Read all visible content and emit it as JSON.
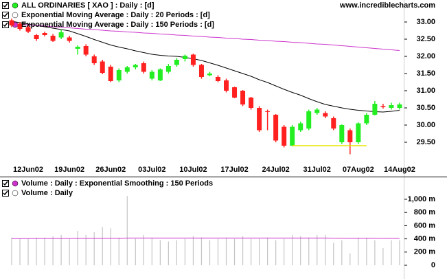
{
  "chart_data": [
    {
      "type": "candlestick",
      "name": "ALL ORDINARIES [ XAO ] : Daily : [d]",
      "source": "www.incrediblecharts.com",
      "categories": [
        null,
        null,
        "12Jun02",
        null,
        null,
        null,
        null,
        "19Jun02",
        null,
        null,
        null,
        null,
        "26Jun02",
        null,
        null,
        null,
        null,
        "03Jul02",
        null,
        null,
        null,
        null,
        "10Jul02",
        null,
        null,
        null,
        null,
        "17Jul02",
        null,
        null,
        null,
        null,
        "24Jul02",
        null,
        null,
        null,
        null,
        "31Jul02",
        null,
        null,
        null,
        null,
        "07Aug02",
        null,
        null,
        null,
        null,
        "14Aug02"
      ],
      "open": [
        33.05,
        32.95,
        32.85,
        32.62,
        32.68,
        32.6,
        32.55,
        32.55,
        32.22,
        32.3,
        32.0,
        31.85,
        31.7,
        31.3,
        31.55,
        31.68,
        31.8,
        31.35,
        31.3,
        31.55,
        31.75,
        31.92,
        32.05,
        31.75,
        31.45,
        31.4,
        31.3,
        31.1,
        31.0,
        30.8,
        30.5,
        30.4,
        30.3,
        29.95,
        29.4,
        29.85,
        29.9,
        30.35,
        30.35,
        30.2,
        29.5,
        29.85,
        29.5,
        30.05,
        30.3,
        30.55,
        30.5,
        30.5
      ],
      "high": [
        33.1,
        33.0,
        32.9,
        32.65,
        32.72,
        32.65,
        32.78,
        32.6,
        32.32,
        32.35,
        32.05,
        31.9,
        31.75,
        31.65,
        31.72,
        31.78,
        31.85,
        31.6,
        31.65,
        31.78,
        31.95,
        32.05,
        32.08,
        31.78,
        31.55,
        31.45,
        31.35,
        31.12,
        31.02,
        30.82,
        30.55,
        30.45,
        30.32,
        30.0,
        30.0,
        30.1,
        30.45,
        30.5,
        30.4,
        30.25,
        30.02,
        29.9,
        30.08,
        30.35,
        30.7,
        30.62,
        30.65,
        30.65
      ],
      "low": [
        32.85,
        32.75,
        32.68,
        32.45,
        32.58,
        32.42,
        32.5,
        32.4,
        32.05,
        32.0,
        31.75,
        31.48,
        31.25,
        31.25,
        31.5,
        31.62,
        31.5,
        31.3,
        31.28,
        31.5,
        31.7,
        31.85,
        31.7,
        31.35,
        31.42,
        31.25,
        30.95,
        30.78,
        30.55,
        30.45,
        29.8,
        29.85,
        29.5,
        29.35,
        29.38,
        29.8,
        29.85,
        30.3,
        30.2,
        29.85,
        29.45,
        29.15,
        29.45,
        30.0,
        30.28,
        30.48,
        30.45,
        30.45
      ],
      "close": [
        32.9,
        32.8,
        32.72,
        32.5,
        32.62,
        32.45,
        32.7,
        32.45,
        32.28,
        32.05,
        31.8,
        31.52,
        31.28,
        31.6,
        31.68,
        31.75,
        31.55,
        31.55,
        31.62,
        31.72,
        31.9,
        32.02,
        31.75,
        31.4,
        31.5,
        31.28,
        31.0,
        30.8,
        30.6,
        30.5,
        29.85,
        30.38,
        29.55,
        29.4,
        29.95,
        30.05,
        30.4,
        30.45,
        30.25,
        29.9,
        30.0,
        29.5,
        30.05,
        30.3,
        30.62,
        30.52,
        30.58,
        30.6
      ],
      "up_color": "#22ee22",
      "down_color": "#ff2020",
      "series": [
        {
          "name": "Exponential Moving Average : Daily : 20 Periods : [d]",
          "color": "#000000",
          "values": [
            33.02,
            32.98,
            32.94,
            32.9,
            32.86,
            32.82,
            32.78,
            32.74,
            32.66,
            32.58,
            32.49,
            32.41,
            32.33,
            32.27,
            32.22,
            32.16,
            32.11,
            32.06,
            32.03,
            32.01,
            32.0,
            31.97,
            31.93,
            31.88,
            31.81,
            31.74,
            31.66,
            31.58,
            31.5,
            31.42,
            31.32,
            31.24,
            31.14,
            31.04,
            30.95,
            30.87,
            30.77,
            30.68,
            30.6,
            30.55,
            30.5,
            30.46,
            30.43,
            30.41,
            30.39,
            30.38,
            30.4,
            30.43
          ]
        },
        {
          "name": "Exponential Moving Average : Daily : 150 Periods : [d]",
          "color": "#cc33cc",
          "values": [
            32.95,
            32.93,
            32.92,
            32.9,
            32.88,
            32.86,
            32.85,
            32.83,
            32.81,
            32.79,
            32.78,
            32.76,
            32.74,
            32.73,
            32.71,
            32.7,
            32.68,
            32.67,
            32.65,
            32.64,
            32.62,
            32.61,
            32.59,
            32.58,
            32.56,
            32.55,
            32.53,
            32.52,
            32.5,
            32.49,
            32.47,
            32.46,
            32.44,
            32.43,
            32.41,
            32.4,
            32.38,
            32.36,
            32.35,
            32.33,
            32.31,
            32.29,
            32.27,
            32.25,
            32.23,
            32.21,
            32.19,
            32.17
          ]
        }
      ],
      "lines": [
        {
          "color": "#e6e600",
          "values": [
            null,
            null,
            null,
            null,
            null,
            null,
            null,
            null,
            null,
            null,
            null,
            null,
            null,
            null,
            null,
            null,
            null,
            null,
            null,
            null,
            null,
            null,
            null,
            null,
            null,
            null,
            null,
            null,
            null,
            null,
            null,
            null,
            null,
            null,
            29.4,
            29.4,
            29.4,
            29.4,
            29.4,
            29.4,
            29.4,
            29.4,
            29.4,
            29.4,
            null,
            null,
            null,
            null
          ]
        }
      ],
      "ylim": [
        28.84,
        33.64
      ],
      "yticks": [
        {
          "value": 33,
          "label": "33.00"
        },
        {
          "value": 32.5,
          "label": "32.50"
        },
        {
          "value": 32,
          "label": "32.00"
        },
        {
          "value": 31.5,
          "label": "31.50"
        },
        {
          "value": 31,
          "label": "31.00"
        },
        {
          "value": 30.5,
          "label": "30.50"
        },
        {
          "value": 30,
          "label": "30.00"
        },
        {
          "value": 29.5,
          "label": "29.50"
        }
      ]
    },
    {
      "type": "bar",
      "series": [
        {
          "name": "Volume : Daily : Exponential Smoothing : 150 Periods",
          "color": "#cc33cc",
          "type": "line",
          "values": [
            405,
            405,
            405,
            406,
            406,
            406,
            407,
            407,
            407,
            408,
            408,
            409,
            410,
            410,
            413,
            413,
            413,
            413,
            413,
            412,
            412,
            412,
            412,
            412,
            412,
            412,
            412,
            412,
            412,
            412,
            412,
            412,
            412,
            412,
            412,
            412,
            412,
            412,
            412,
            411,
            411,
            410,
            410,
            410,
            410,
            409,
            409,
            408
          ]
        },
        {
          "name": "Volume : Daily",
          "color": "#c4c4c4",
          "values": [
            420,
            400,
            400,
            420,
            420,
            440,
            460,
            400,
            520,
            460,
            500,
            580,
            560,
            420,
            1050,
            400,
            460,
            420,
            380,
            360,
            380,
            400,
            440,
            420,
            380,
            400,
            420,
            400,
            440,
            400,
            400,
            420,
            380,
            400,
            460,
            440,
            420,
            460,
            460,
            340,
            380,
            180,
            420,
            420,
            380,
            260,
            380,
            380
          ]
        }
      ],
      "ylim": [
        0,
        1100
      ],
      "yticks": [
        {
          "value": 1000,
          "label": "1,000 m"
        },
        {
          "value": 800,
          "label": "800 m"
        },
        {
          "value": 600,
          "label": "600 m"
        },
        {
          "value": 400,
          "label": "400 m"
        },
        {
          "value": 200,
          "label": "200 m"
        },
        0
      ]
    }
  ]
}
